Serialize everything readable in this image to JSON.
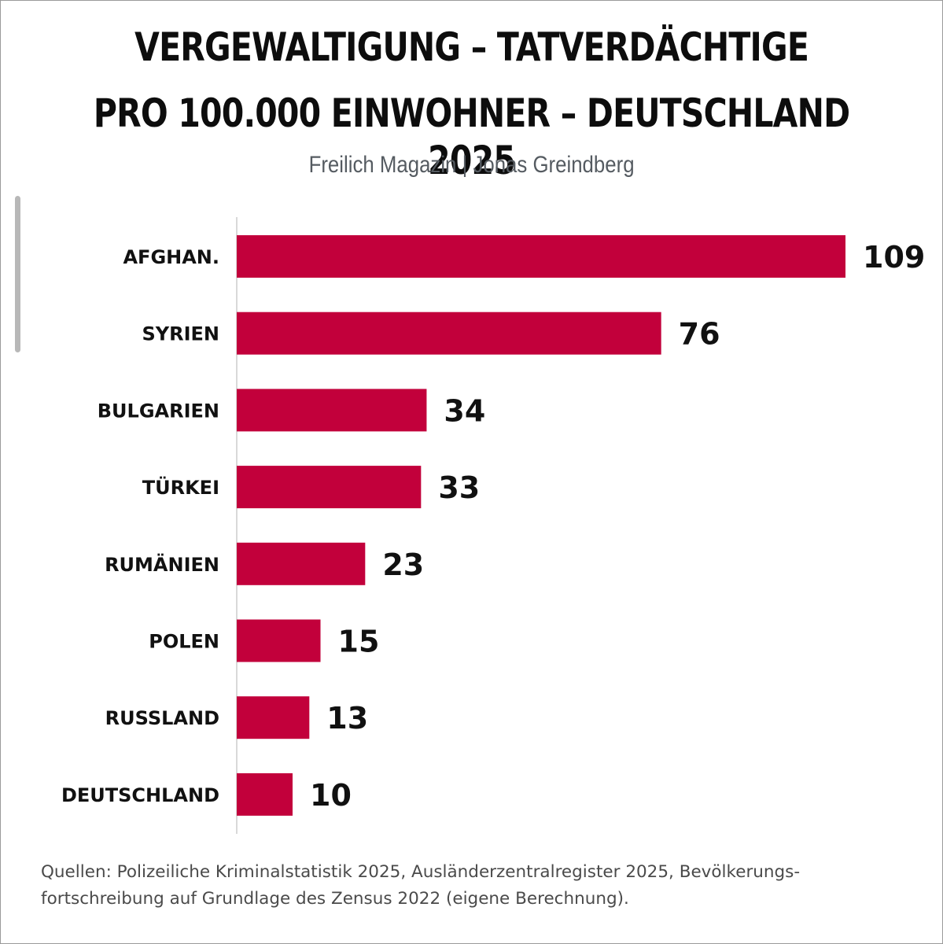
{
  "chart_data": {
    "type": "bar",
    "orientation": "horizontal",
    "title_lines": [
      "VERGEWALTIGUNG – TATVERDÄCHTIGE",
      "PRO 100.000 EINWOHNER – DEUTSCHLAND 2025"
    ],
    "subtitle": "Freilich Magazin | Jonas Greindberg",
    "categories": [
      "AFGHAN.",
      "SYRIEN",
      "BULGARIEN",
      "TÜRKEI",
      "RUMÄNIEN",
      "POLEN",
      "RUSSLAND",
      "DEUTSCHLAND"
    ],
    "values": [
      109,
      76,
      34,
      33,
      23,
      15,
      13,
      10
    ],
    "xlim": [
      0,
      109
    ],
    "bar_color": "#c2003b",
    "grid": false,
    "data_labels": true
  },
  "footer": {
    "source_text": "Quellen: Polizeiliche Kriminalstatistik 2025, Ausländerzentralregister 2025, Bevölkerungs-\nfortschreibung auf Grundlage des Zensus 2022 (eigene Berechnung)."
  }
}
